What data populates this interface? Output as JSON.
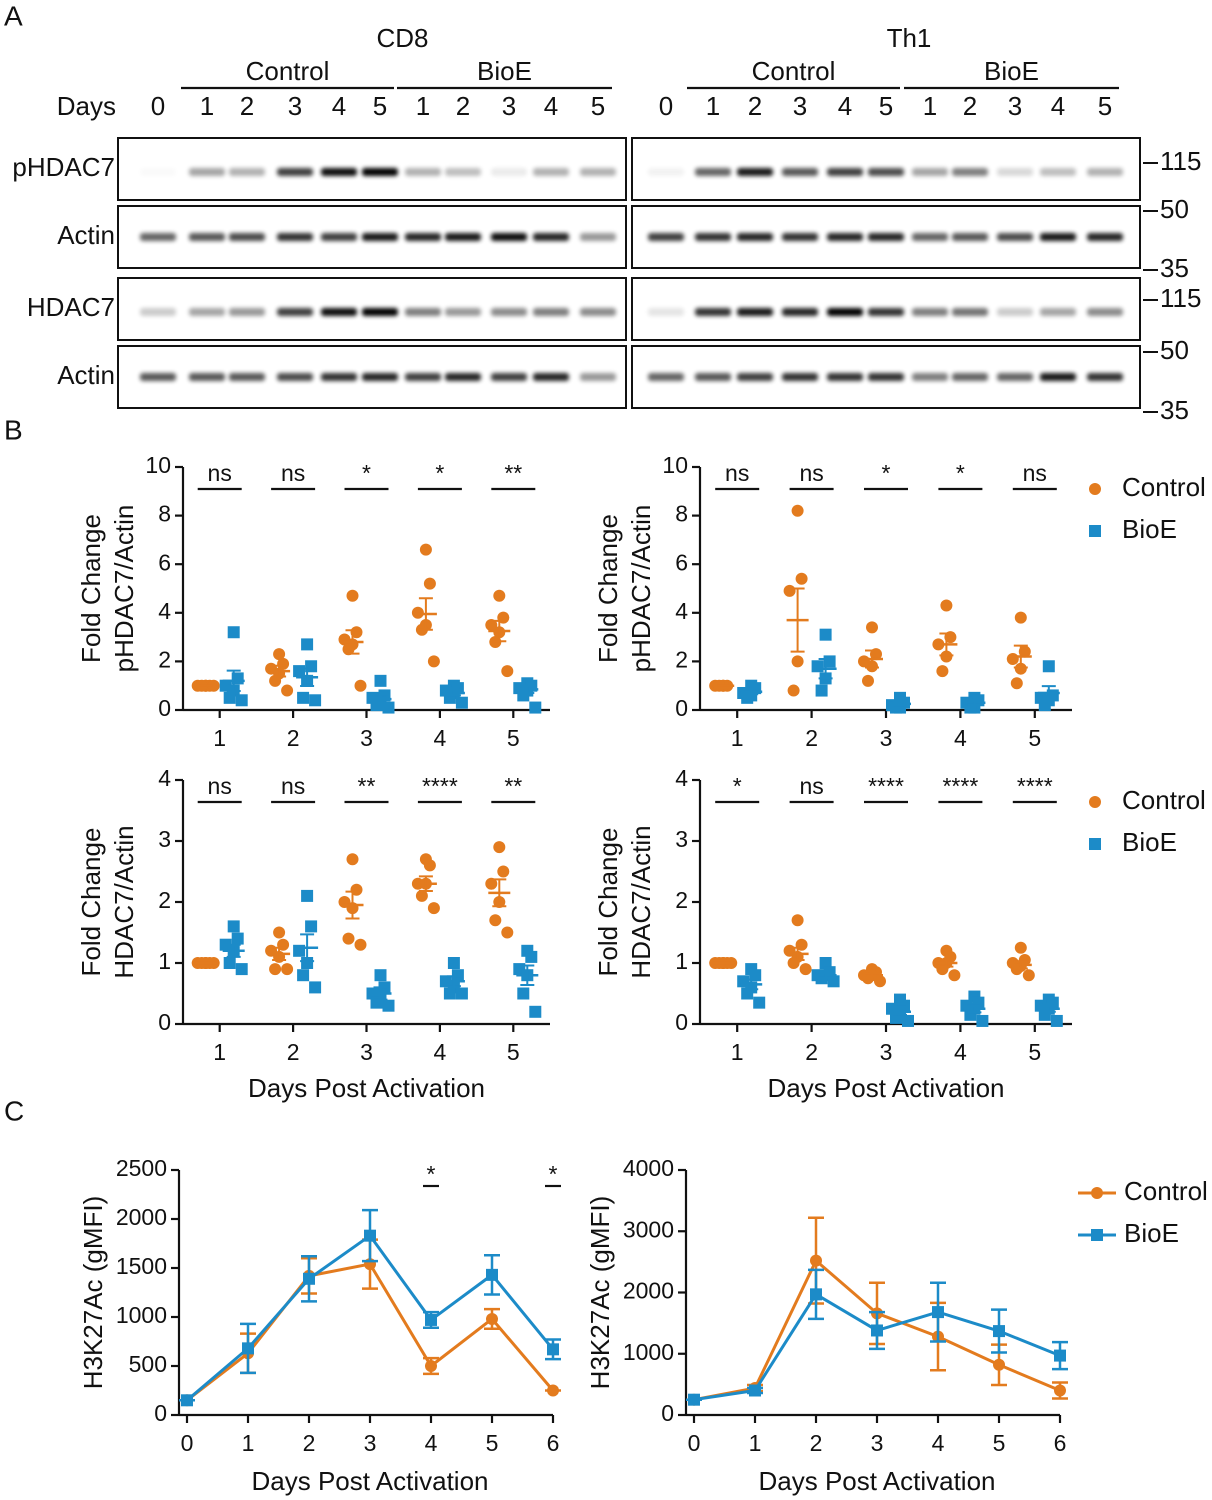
{
  "panel_labels": [
    "A",
    "B",
    "C"
  ],
  "blot": {
    "days_label": "Days",
    "rows": [
      "pHDAC7",
      "Actin",
      "HDAC7",
      "Actin"
    ],
    "markers": [
      "115",
      "50",
      "35",
      "115",
      "50",
      "35"
    ],
    "groups": [
      {
        "title": "CD8",
        "baseline": "0",
        "conditions": [
          {
            "name": "Control",
            "days": [
              "1",
              "2",
              "3",
              "4",
              "5"
            ]
          },
          {
            "name": "BioE",
            "days": [
              "1",
              "2",
              "3",
              "4",
              "5"
            ]
          }
        ]
      },
      {
        "title": "Th1",
        "baseline": "0",
        "conditions": [
          {
            "name": "Control",
            "days": [
              "1",
              "2",
              "3",
              "4",
              "5"
            ]
          },
          {
            "name": "BioE",
            "days": [
              "1",
              "2",
              "3",
              "4",
              "5"
            ]
          }
        ]
      }
    ]
  },
  "chart_data": [
    {
      "type": "scatter",
      "y_label": [
        "Fold Change",
        "pHDAC7/Actin"
      ],
      "categories": [
        "1",
        "2",
        "3",
        "4",
        "5"
      ],
      "ylim": [
        0,
        10
      ],
      "yticks": [
        0,
        2,
        4,
        6,
        8,
        10
      ],
      "significance": [
        "ns",
        "ns",
        "*",
        "*",
        "**"
      ],
      "series": [
        {
          "color": "#E37B1E",
          "marker": "circle",
          "values": [
            [
              1,
              1,
              1,
              1,
              1,
              1
            ],
            [
              2.3,
              1.9,
              1.7,
              1.5,
              1.2,
              0.8
            ],
            [
              4.7,
              3.2,
              2.9,
              2.7,
              2.5,
              1.0
            ],
            [
              6.6,
              5.2,
              4.0,
              3.5,
              3.3,
              2.0
            ],
            [
              4.7,
              3.8,
              3.5,
              3.2,
              2.8,
              1.6
            ]
          ],
          "mean": [
            1,
            1.6,
            2.8,
            3.95,
            3.25
          ],
          "sem": [
            0,
            0.22,
            0.48,
            0.65,
            0.42
          ]
        },
        {
          "color": "#1C8BC8",
          "marker": "square",
          "values": [
            [
              3.2,
              1.3,
              1.0,
              0.8,
              0.5,
              0.4
            ],
            [
              2.7,
              1.8,
              1.6,
              1.2,
              0.5,
              0.4
            ],
            [
              1.2,
              0.6,
              0.5,
              0.3,
              0.2,
              0.1
            ],
            [
              1.0,
              0.9,
              0.8,
              0.7,
              0.5,
              0.3
            ],
            [
              1.1,
              1.0,
              0.9,
              0.8,
              0.6,
              0.1
            ]
          ],
          "mean": [
            1.2,
            1.35,
            0.45,
            0.7,
            0.85
          ],
          "sem": [
            0.42,
            0.36,
            0.17,
            0.1,
            0.15
          ]
        }
      ]
    },
    {
      "type": "scatter",
      "y_label": [
        "Fold Change",
        "pHDAC7/Actin"
      ],
      "categories": [
        "1",
        "2",
        "3",
        "4",
        "5"
      ],
      "ylim": [
        0,
        10
      ],
      "yticks": [
        0,
        2,
        4,
        6,
        8,
        10
      ],
      "significance": [
        "ns",
        "ns",
        "*",
        "*",
        "ns"
      ],
      "legend": "outside-right",
      "series": [
        {
          "name": "Control",
          "color": "#E37B1E",
          "marker": "circle",
          "values": [
            [
              1,
              1,
              1,
              1,
              1
            ],
            [
              8.2,
              5.4,
              4.9,
              2.0,
              0.8
            ],
            [
              3.4,
              2.3,
              2.0,
              1.8,
              1.2
            ],
            [
              4.3,
              3.0,
              2.7,
              2.2,
              1.6
            ],
            [
              3.8,
              2.4,
              2.1,
              1.7,
              1.1
            ]
          ],
          "mean": [
            1,
            3.7,
            2.1,
            2.7,
            2.2
          ],
          "sem": [
            0,
            1.3,
            0.35,
            0.45,
            0.45
          ]
        },
        {
          "name": "BioE",
          "color": "#1C8BC8",
          "marker": "square",
          "values": [
            [
              1.0,
              0.9,
              0.7,
              0.6,
              0.5
            ],
            [
              3.1,
              2.0,
              1.8,
              1.3,
              0.8
            ],
            [
              0.5,
              0.3,
              0.2,
              0.1,
              0.1
            ],
            [
              0.5,
              0.4,
              0.3,
              0.1,
              0.1
            ],
            [
              1.8,
              0.6,
              0.5,
              0.4,
              0.2
            ]
          ],
          "mean": [
            0.75,
            1.7,
            0.25,
            0.3,
            0.7
          ],
          "sem": [
            0.1,
            0.4,
            0.08,
            0.08,
            0.28
          ]
        }
      ]
    },
    {
      "type": "scatter",
      "y_label": [
        "Fold Change",
        "HDAC7/Actin"
      ],
      "x_label": "Days Post Activation",
      "categories": [
        "1",
        "2",
        "3",
        "4",
        "5"
      ],
      "ylim": [
        0,
        4
      ],
      "yticks": [
        0,
        1,
        2,
        3,
        4
      ],
      "significance": [
        "ns",
        "ns",
        "**",
        "****",
        "**"
      ],
      "series": [
        {
          "color": "#E37B1E",
          "marker": "circle",
          "values": [
            [
              1,
              1,
              1,
              1,
              1,
              1
            ],
            [
              1.5,
              1.3,
              1.2,
              1.1,
              0.9,
              0.9
            ],
            [
              2.7,
              2.2,
              2.0,
              1.9,
              1.4,
              1.3
            ],
            [
              2.7,
              2.6,
              2.3,
              2.3,
              2.1,
              1.9
            ],
            [
              2.9,
              2.5,
              2.3,
              2.0,
              1.7,
              1.5
            ]
          ],
          "mean": [
            1,
            1.15,
            1.95,
            2.3,
            2.15
          ],
          "sem": [
            0,
            0.1,
            0.22,
            0.12,
            0.22
          ]
        },
        {
          "color": "#1C8BC8",
          "marker": "square",
          "values": [
            [
              1.6,
              1.4,
              1.3,
              1.2,
              1.0,
              0.9
            ],
            [
              2.1,
              1.6,
              1.2,
              1.0,
              0.8,
              0.6
            ],
            [
              0.8,
              0.6,
              0.5,
              0.45,
              0.35,
              0.3
            ],
            [
              1.0,
              0.8,
              0.7,
              0.6,
              0.5,
              0.5
            ],
            [
              1.2,
              1.1,
              0.9,
              0.8,
              0.5,
              0.2
            ]
          ],
          "mean": [
            1.2,
            1.25,
            0.5,
            0.7,
            0.8
          ],
          "sem": [
            0.1,
            0.22,
            0.1,
            0.08,
            0.16
          ]
        }
      ]
    },
    {
      "type": "scatter",
      "y_label": [
        "Fold Change",
        "HDAC7/Actin"
      ],
      "x_label": "Days Post Activation",
      "categories": [
        "1",
        "2",
        "3",
        "4",
        "5"
      ],
      "ylim": [
        0,
        4
      ],
      "yticks": [
        0,
        1,
        2,
        3,
        4
      ],
      "significance": [
        "*",
        "ns",
        "****",
        "****",
        "****"
      ],
      "legend": "outside-right",
      "series": [
        {
          "name": "Control",
          "color": "#E37B1E",
          "marker": "circle",
          "values": [
            [
              1,
              1,
              1,
              1,
              1,
              1
            ],
            [
              1.7,
              1.3,
              1.2,
              1.1,
              1.0,
              0.9
            ],
            [
              0.9,
              0.85,
              0.8,
              0.8,
              0.75,
              0.7
            ],
            [
              1.2,
              1.1,
              1.0,
              1.0,
              0.9,
              0.8
            ],
            [
              1.25,
              1.05,
              1.0,
              0.95,
              0.9,
              0.8
            ]
          ],
          "mean": [
            1,
            1.15,
            0.8,
            1.0,
            0.97
          ],
          "sem": [
            0,
            0.1,
            0.03,
            0.06,
            0.06
          ]
        },
        {
          "name": "BioE",
          "color": "#1C8BC8",
          "marker": "square",
          "values": [
            [
              0.9,
              0.8,
              0.7,
              0.6,
              0.5,
              0.35
            ],
            [
              1.0,
              0.85,
              0.8,
              0.8,
              0.75,
              0.7
            ],
            [
              0.4,
              0.3,
              0.25,
              0.2,
              0.1,
              0.05
            ],
            [
              0.45,
              0.35,
              0.3,
              0.25,
              0.15,
              0.05
            ],
            [
              0.4,
              0.35,
              0.3,
              0.25,
              0.15,
              0.05
            ]
          ],
          "mean": [
            0.65,
            0.8,
            0.2,
            0.25,
            0.25
          ],
          "sem": [
            0.08,
            0.04,
            0.05,
            0.06,
            0.05
          ]
        }
      ]
    },
    {
      "type": "line",
      "y_label": "H3K27Ac (gMFI)",
      "x_label": "Days Post Activation",
      "x": [
        0,
        1,
        2,
        3,
        4,
        5,
        6
      ],
      "xlim": [
        0,
        6
      ],
      "xticks": [
        0,
        1,
        2,
        3,
        4,
        5,
        6
      ],
      "ylim": [
        0,
        2500
      ],
      "yticks": [
        0,
        500,
        1000,
        1500,
        2000,
        2500
      ],
      "annotations": [
        {
          "x": 4,
          "text": "*"
        },
        {
          "x": 6,
          "text": "*"
        }
      ],
      "series": [
        {
          "color": "#E37B1E",
          "marker": "circle",
          "values": [
            150,
            630,
            1420,
            1540,
            500,
            980,
            250
          ],
          "errors": [
            0,
            200,
            180,
            250,
            80,
            100,
            0
          ]
        },
        {
          "color": "#1C8BC8",
          "marker": "square",
          "values": [
            150,
            680,
            1390,
            1830,
            970,
            1430,
            670
          ],
          "errors": [
            0,
            250,
            230,
            260,
            80,
            200,
            100
          ]
        }
      ]
    },
    {
      "type": "line",
      "y_label": "H3K27Ac (gMFI)",
      "x_label": "Days Post Activation",
      "x": [
        0,
        1,
        2,
        3,
        4,
        5,
        6
      ],
      "xlim": [
        0,
        6
      ],
      "xticks": [
        0,
        1,
        2,
        3,
        4,
        5,
        6
      ],
      "ylim": [
        0,
        4000
      ],
      "yticks": [
        0,
        1000,
        2000,
        3000,
        4000
      ],
      "legend": "outside-right",
      "series": [
        {
          "name": "Control",
          "color": "#E37B1E",
          "marker": "circle",
          "values": [
            250,
            440,
            2520,
            1660,
            1280,
            820,
            400
          ],
          "errors": [
            0,
            50,
            700,
            500,
            550,
            330,
            130
          ]
        },
        {
          "name": "BioE",
          "color": "#1C8BC8",
          "marker": "square",
          "values": [
            250,
            400,
            1970,
            1380,
            1680,
            1370,
            970
          ],
          "errors": [
            0,
            40,
            400,
            300,
            480,
            350,
            220
          ]
        }
      ]
    }
  ]
}
